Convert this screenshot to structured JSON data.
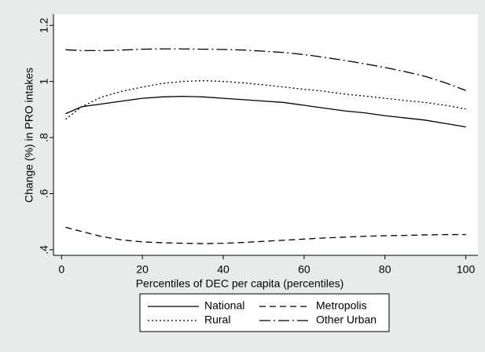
{
  "chart_data": {
    "type": "line",
    "x_label": "Percentiles of DEC per capita (percentiles)",
    "y_label": "Change (%) in PRO intakes",
    "x": [
      1,
      5,
      10,
      15,
      20,
      25,
      30,
      35,
      40,
      45,
      50,
      55,
      60,
      65,
      70,
      75,
      80,
      85,
      90,
      95,
      100
    ],
    "series": [
      {
        "name": "National",
        "color": "#000000",
        "dash": "none",
        "values": [
          0.885,
          0.91,
          0.92,
          0.93,
          0.94,
          0.945,
          0.947,
          0.945,
          0.94,
          0.935,
          0.93,
          0.925,
          0.915,
          0.905,
          0.895,
          0.888,
          0.878,
          0.87,
          0.862,
          0.85,
          0.838
        ]
      },
      {
        "name": "Metropolis",
        "color": "#000000",
        "dash": "8,5",
        "values": [
          0.48,
          0.465,
          0.447,
          0.435,
          0.428,
          0.425,
          0.423,
          0.422,
          0.423,
          0.426,
          0.43,
          0.434,
          0.438,
          0.442,
          0.445,
          0.448,
          0.45,
          0.451,
          0.453,
          0.454,
          0.454
        ]
      },
      {
        "name": "Rural",
        "color": "#000000",
        "dash": "2,3",
        "values": [
          0.865,
          0.91,
          0.945,
          0.965,
          0.98,
          0.993,
          1.0,
          1.003,
          1.0,
          0.995,
          0.988,
          0.98,
          0.972,
          0.965,
          0.955,
          0.948,
          0.94,
          0.932,
          0.925,
          0.915,
          0.902
        ]
      },
      {
        "name": "Other Urban",
        "color": "#000000",
        "dash": "14,4,2,4",
        "values": [
          1.113,
          1.11,
          1.11,
          1.112,
          1.115,
          1.116,
          1.116,
          1.115,
          1.114,
          1.112,
          1.108,
          1.103,
          1.096,
          1.086,
          1.075,
          1.063,
          1.05,
          1.035,
          1.018,
          0.995,
          0.968
        ]
      }
    ],
    "xlim": [
      -2,
      103
    ],
    "xticks": [
      0,
      20,
      40,
      60,
      80,
      100
    ],
    "ylim": [
      0.38,
      1.24
    ],
    "yticks": [
      {
        "value": 0.4,
        "label": ".4"
      },
      {
        "value": 0.6,
        "label": ".6"
      },
      {
        "value": 0.8,
        "label": ".8"
      },
      1,
      1.2
    ],
    "legend": "bottom"
  }
}
